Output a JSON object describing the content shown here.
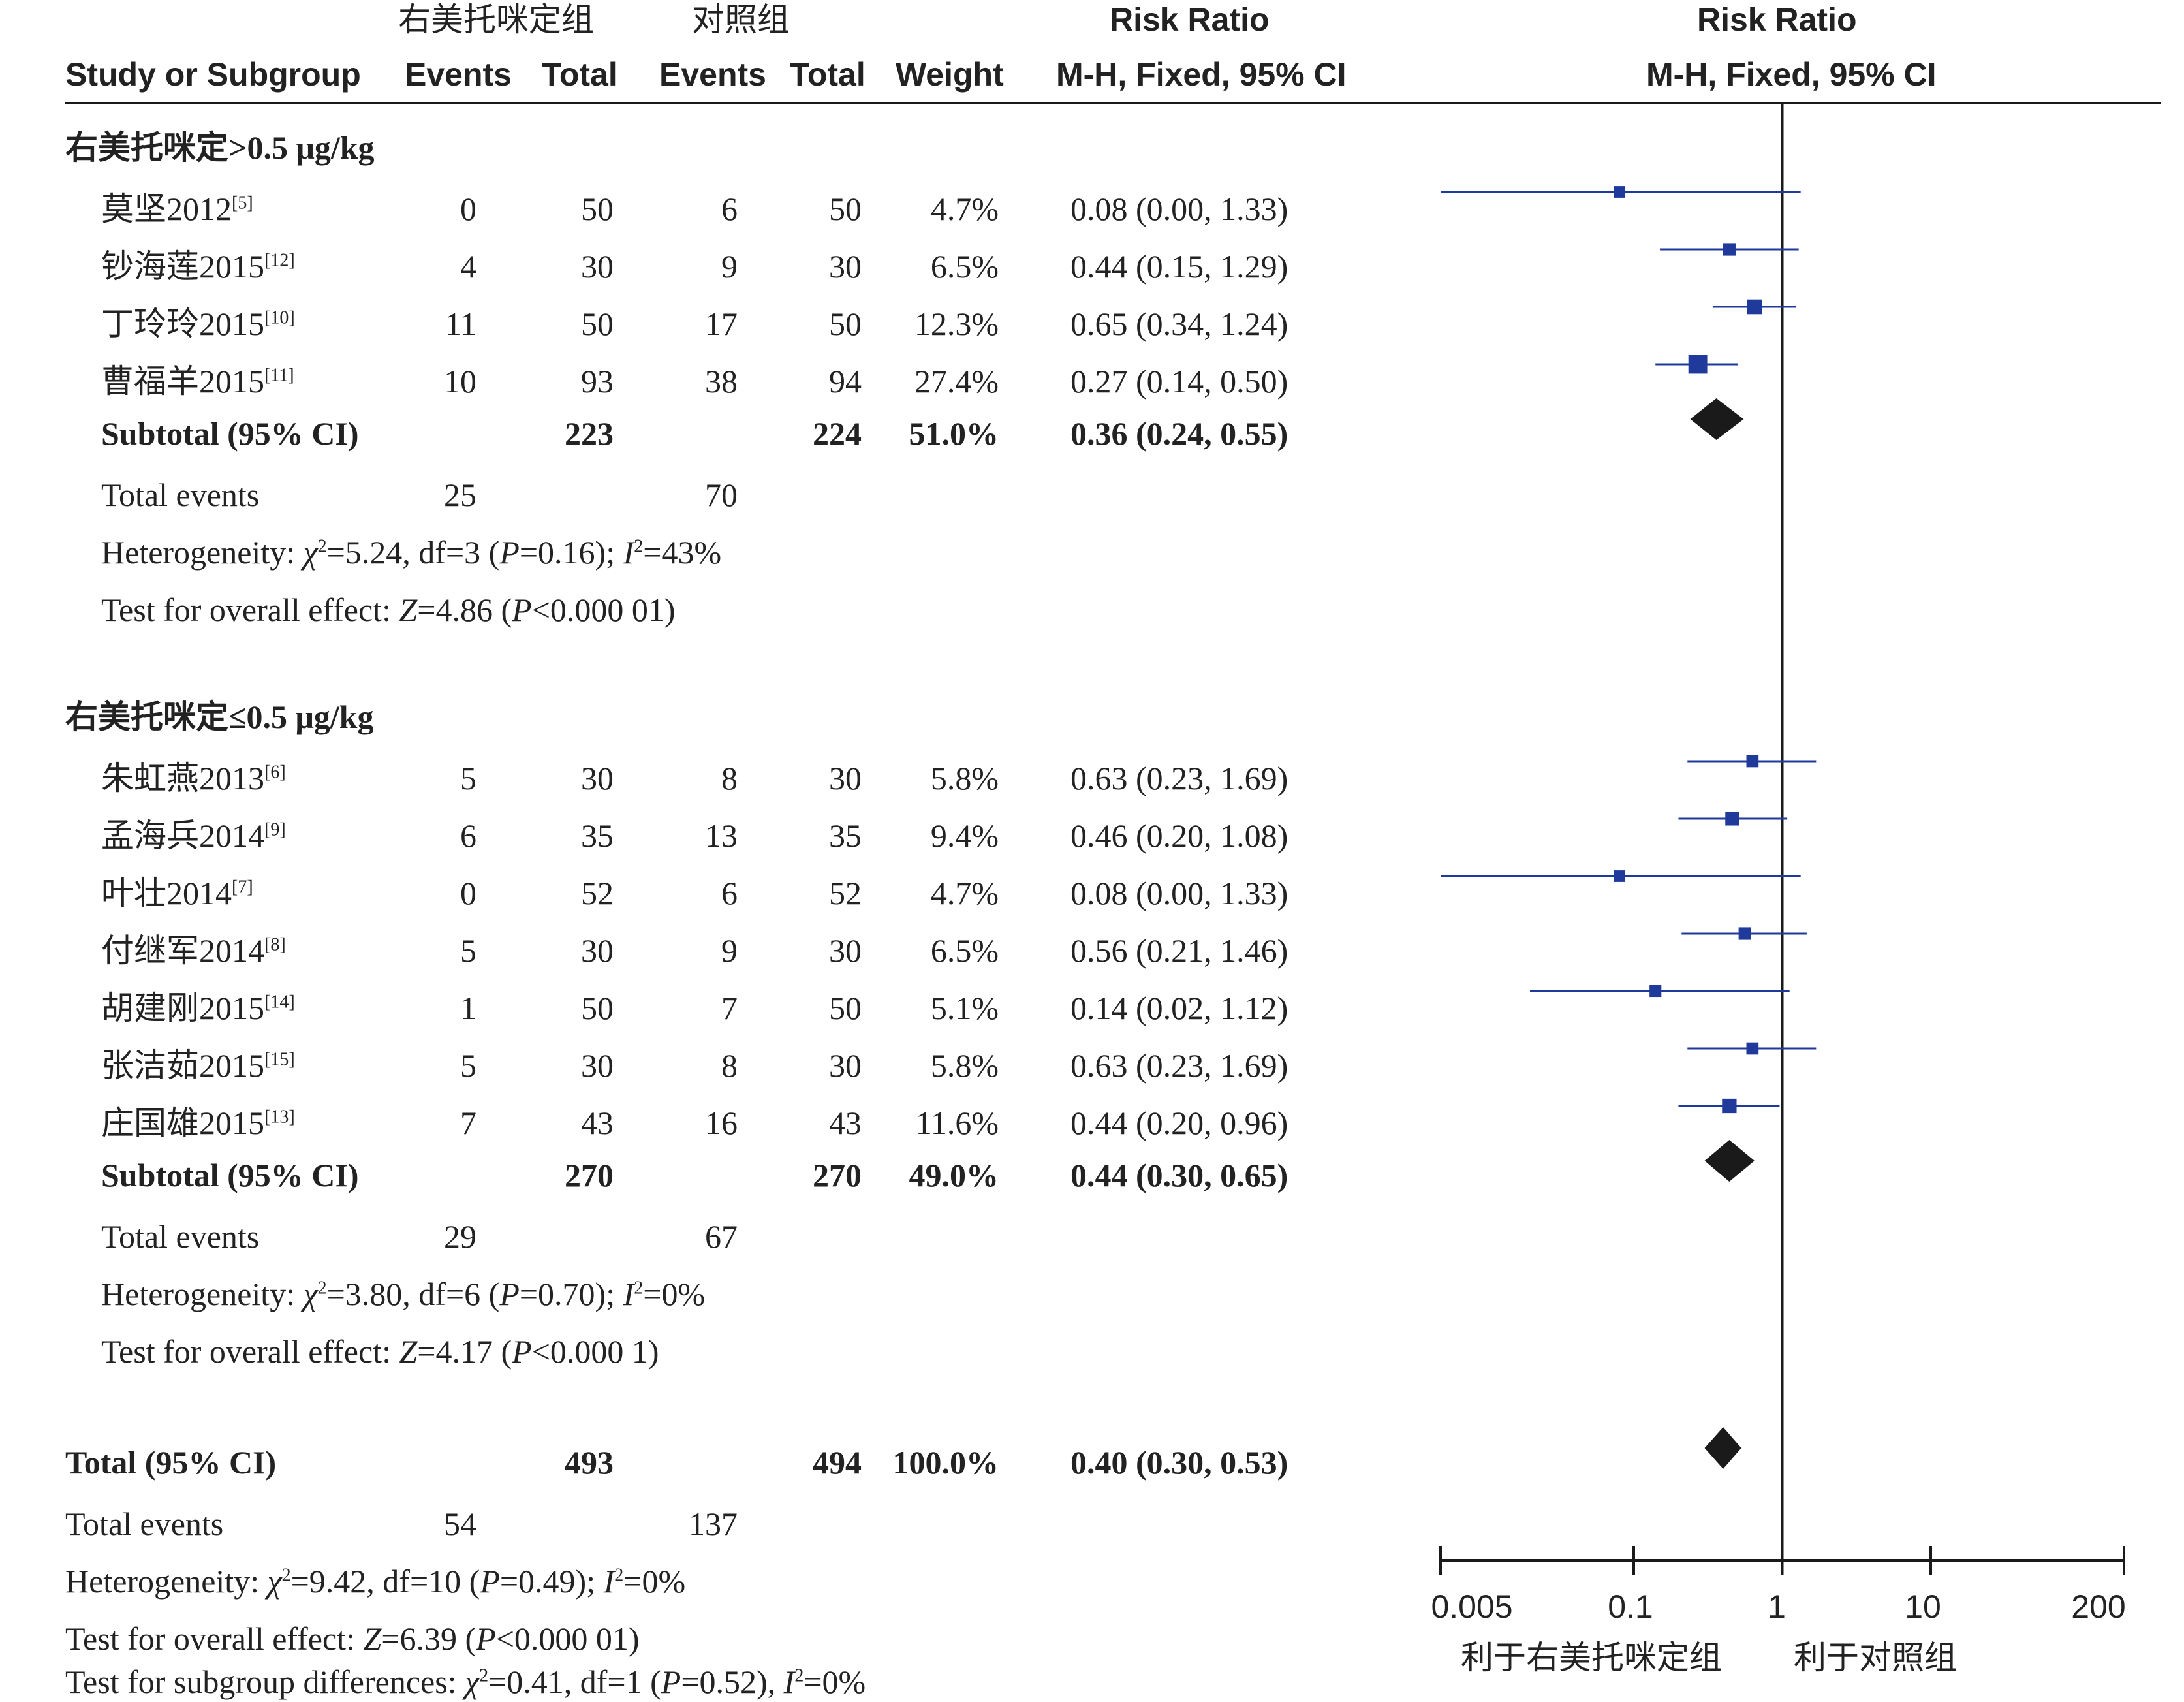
{
  "header": {
    "group1": "右美托咪定组",
    "group2": "对照组",
    "rr_title": "Risk Ratio",
    "rr_method": "M-H, Fixed, 95% CI",
    "col_study": "Study or Subgroup",
    "col_events": "Events",
    "col_total": "Total",
    "col_weight": "Weight"
  },
  "subgroups": [
    {
      "title": "右美托咪定>0.5 μg/kg",
      "studies": [
        {
          "name": "莫坚2012",
          "ref": "[5]",
          "e1": "0",
          "n1": "50",
          "e2": "6",
          "n2": "50",
          "weight": "4.7%",
          "ci": "0.08 (0.00, 1.33)"
        },
        {
          "name": "钞海莲2015",
          "ref": "[12]",
          "e1": "4",
          "n1": "30",
          "e2": "9",
          "n2": "30",
          "weight": "6.5%",
          "ci": "0.44 (0.15, 1.29)"
        },
        {
          "name": "丁玲玲2015",
          "ref": "[10]",
          "e1": "11",
          "n1": "50",
          "e2": "17",
          "n2": "50",
          "weight": "12.3%",
          "ci": "0.65 (0.34, 1.24)"
        },
        {
          "name": "曹福羊2015",
          "ref": "[11]",
          "e1": "10",
          "n1": "93",
          "e2": "38",
          "n2": "94",
          "weight": "27.4%",
          "ci": "0.27 (0.14, 0.50)"
        }
      ],
      "subtotal": {
        "label": "Subtotal (95% CI)",
        "n1": "223",
        "n2": "224",
        "weight": "51.0%",
        "ci": "0.36 (0.24, 0.55)"
      },
      "events": {
        "label": "Total events",
        "e1": "25",
        "e2": "70"
      },
      "heterogeneity": {
        "prefix": "Heterogeneity: ",
        "chi": "χ",
        "chi2": "2",
        "rest1": "=5.24, df=3 (",
        "p": "P",
        "rest2": "=0.16); ",
        "i": "I",
        "i2": "2",
        "rest3": "=43%"
      },
      "overall": {
        "prefix": "Test for overall effect: ",
        "z": "Z",
        "rest1": "=4.86 (",
        "p": "P",
        "rest2": "<0.000 01)"
      }
    },
    {
      "title": "右美托咪定≤0.5 μg/kg",
      "studies": [
        {
          "name": "朱虹燕2013",
          "ref": "[6]",
          "e1": "5",
          "n1": "30",
          "e2": "8",
          "n2": "30",
          "weight": "5.8%",
          "ci": "0.63 (0.23, 1.69)"
        },
        {
          "name": "孟海兵2014",
          "ref": "[9]",
          "e1": "6",
          "n1": "35",
          "e2": "13",
          "n2": "35",
          "weight": "9.4%",
          "ci": "0.46 (0.20, 1.08)"
        },
        {
          "name": "叶壮2014",
          "ref": "[7]",
          "e1": "0",
          "n1": "52",
          "e2": "6",
          "n2": "52",
          "weight": "4.7%",
          "ci": "0.08 (0.00, 1.33)"
        },
        {
          "name": "付继军2014",
          "ref": "[8]",
          "e1": "5",
          "n1": "30",
          "e2": "9",
          "n2": "30",
          "weight": "6.5%",
          "ci": "0.56 (0.21, 1.46)"
        },
        {
          "name": "胡建刚2015",
          "ref": "[14]",
          "e1": "1",
          "n1": "50",
          "e2": "7",
          "n2": "50",
          "weight": "5.1%",
          "ci": "0.14 (0.02, 1.12)"
        },
        {
          "name": "张洁茹2015",
          "ref": "[15]",
          "e1": "5",
          "n1": "30",
          "e2": "8",
          "n2": "30",
          "weight": "5.8%",
          "ci": "0.63 (0.23, 1.69)"
        },
        {
          "name": "庄国雄2015",
          "ref": "[13]",
          "e1": "7",
          "n1": "43",
          "e2": "16",
          "n2": "43",
          "weight": "11.6%",
          "ci": "0.44 (0.20, 0.96)"
        }
      ],
      "subtotal": {
        "label": "Subtotal (95% CI)",
        "n1": "270",
        "n2": "270",
        "weight": "49.0%",
        "ci": "0.44 (0.30, 0.65)"
      },
      "events": {
        "label": "Total events",
        "e1": "29",
        "e2": "67"
      },
      "heterogeneity": {
        "prefix": "Heterogeneity: ",
        "chi": "χ",
        "chi2": "2",
        "rest1": "=3.80, df=6 (",
        "p": "P",
        "rest2": "=0.70); ",
        "i": "I",
        "i2": "2",
        "rest3": "=0%"
      },
      "overall": {
        "prefix": "Test for overall effect: ",
        "z": "Z",
        "rest1": "=4.17 (",
        "p": "P",
        "rest2": "<0.000 1)"
      }
    }
  ],
  "total": {
    "label": "Total (95% CI)",
    "n1": "493",
    "n2": "494",
    "weight": "100.0%",
    "ci": "0.40 (0.30, 0.53)"
  },
  "total_events": {
    "label": "Total events",
    "e1": "54",
    "e2": "137"
  },
  "total_heterogeneity": {
    "prefix": "Heterogeneity: ",
    "chi": "χ",
    "chi2": "2",
    "rest1": "=9.42, df=10 (",
    "p": "P",
    "rest2": "=0.49); ",
    "i": "I",
    "i2": "2",
    "rest3": "=0%"
  },
  "total_overall": {
    "prefix": "Test for overall effect: ",
    "z": "Z",
    "rest1": "=6.39 (",
    "p": "P",
    "rest2": "<0.000 01)"
  },
  "subgroup_diff": {
    "prefix": "Test for subgroup differences: ",
    "chi": "χ",
    "chi2": "2",
    "rest1": "=0.41, df=1 (",
    "p": "P",
    "rest2": "=0.52), ",
    "i": "I",
    "i2": "2",
    "rest3": "=0%"
  },
  "axis": {
    "ticks": [
      "0.005",
      "0.1",
      "1",
      "10",
      "200"
    ],
    "favours_left": "利于右美托咪定组",
    "favours_right": "利于对照组"
  },
  "chart_data": {
    "type": "forest",
    "scale": "log",
    "xlim": [
      0.005,
      200
    ],
    "reference_line": 1,
    "colors": {
      "study": "#1f3a9a",
      "diamond": "#1a1a1a",
      "line": "#1a1a1a"
    },
    "studies": [
      {
        "group": 0,
        "rr": 0.08,
        "lo": 0.0,
        "hi": 1.33,
        "w": 4.7
      },
      {
        "group": 0,
        "rr": 0.44,
        "lo": 0.15,
        "hi": 1.29,
        "w": 6.5
      },
      {
        "group": 0,
        "rr": 0.65,
        "lo": 0.34,
        "hi": 1.24,
        "w": 12.3
      },
      {
        "group": 0,
        "rr": 0.27,
        "lo": 0.14,
        "hi": 0.5,
        "w": 27.4
      },
      {
        "group": 1,
        "rr": 0.63,
        "lo": 0.23,
        "hi": 1.69,
        "w": 5.8
      },
      {
        "group": 1,
        "rr": 0.46,
        "lo": 0.2,
        "hi": 1.08,
        "w": 9.4
      },
      {
        "group": 1,
        "rr": 0.08,
        "lo": 0.0,
        "hi": 1.33,
        "w": 4.7
      },
      {
        "group": 1,
        "rr": 0.56,
        "lo": 0.21,
        "hi": 1.46,
        "w": 6.5
      },
      {
        "group": 1,
        "rr": 0.14,
        "lo": 0.02,
        "hi": 1.12,
        "w": 5.1
      },
      {
        "group": 1,
        "rr": 0.63,
        "lo": 0.23,
        "hi": 1.69,
        "w": 5.8
      },
      {
        "group": 1,
        "rr": 0.44,
        "lo": 0.2,
        "hi": 0.96,
        "w": 11.6
      }
    ],
    "subtotals": [
      {
        "rr": 0.36,
        "lo": 0.24,
        "hi": 0.55
      },
      {
        "rr": 0.44,
        "lo": 0.3,
        "hi": 0.65
      }
    ],
    "total": {
      "rr": 0.4,
      "lo": 0.3,
      "hi": 0.53
    }
  }
}
